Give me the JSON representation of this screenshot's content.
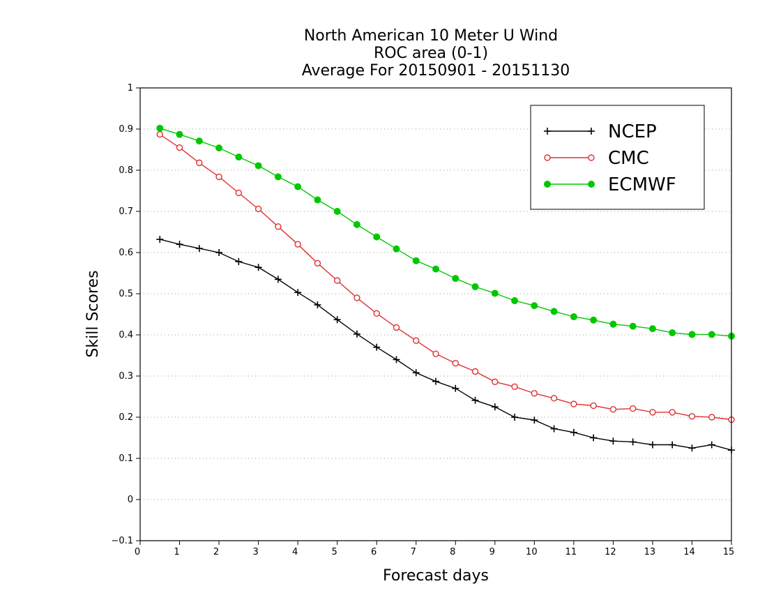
{
  "chart_data": {
    "type": "line",
    "title_lines": [
      "North American 10 Meter U Wind",
      "ROC area (0-1)",
      "Average For 20150901 - 20151130"
    ],
    "xlabel": "Forecast days",
    "ylabel": "Skill Scores",
    "xlim": [
      0,
      15
    ],
    "ylim": [
      -0.1,
      1
    ],
    "x_ticks": [
      "0",
      "1",
      "2",
      "3",
      "4",
      "5",
      "6",
      "7",
      "8",
      "9",
      "10",
      "11",
      "12",
      "13",
      "14",
      "15"
    ],
    "y_ticks": [
      "−0.1",
      "0",
      "0.1",
      "0.2",
      "0.3",
      "0.4",
      "0.5",
      "0.6",
      "0.7",
      "0.8",
      "0.9",
      "1"
    ],
    "grid": true,
    "legend_position": "top-right",
    "x": [
      0.5,
      1,
      1.5,
      2,
      2.5,
      3,
      3.5,
      4,
      4.5,
      5,
      5.5,
      6,
      6.5,
      7,
      7.5,
      8,
      8.5,
      9,
      9.5,
      10,
      10.5,
      11,
      11.5,
      12,
      12.5,
      13,
      13.5,
      14,
      14.5,
      15
    ],
    "series": [
      {
        "name": "NCEP",
        "color": "#000000",
        "marker": "plus",
        "values": [
          0.632,
          0.62,
          0.61,
          0.6,
          0.578,
          0.564,
          0.535,
          0.503,
          0.473,
          0.437,
          0.402,
          0.37,
          0.34,
          0.308,
          0.287,
          0.27,
          0.241,
          0.225,
          0.2,
          0.193,
          0.172,
          0.163,
          0.15,
          0.142,
          0.14,
          0.133,
          0.133,
          0.125,
          0.133,
          0.12
        ]
      },
      {
        "name": "CMC",
        "color": "#e03030",
        "marker": "open-circle",
        "values": [
          0.887,
          0.855,
          0.818,
          0.784,
          0.745,
          0.706,
          0.663,
          0.62,
          0.574,
          0.532,
          0.49,
          0.452,
          0.418,
          0.386,
          0.354,
          0.331,
          0.311,
          0.286,
          0.274,
          0.258,
          0.246,
          0.232,
          0.228,
          0.219,
          0.221,
          0.212,
          0.212,
          0.202,
          0.2,
          0.194
        ]
      },
      {
        "name": "ECMWF",
        "color": "#00c800",
        "marker": "filled-circle",
        "values": [
          0.902,
          0.887,
          0.871,
          0.854,
          0.832,
          0.811,
          0.784,
          0.76,
          0.728,
          0.7,
          0.668,
          0.638,
          0.609,
          0.58,
          0.56,
          0.537,
          0.517,
          0.501,
          0.483,
          0.471,
          0.457,
          0.444,
          0.436,
          0.426,
          0.421,
          0.415,
          0.405,
          0.401,
          0.401,
          0.397
        ]
      }
    ]
  }
}
